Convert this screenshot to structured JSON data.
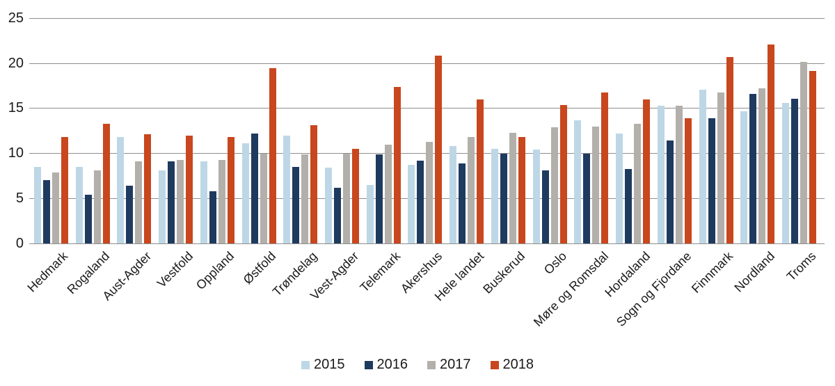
{
  "chart_data": {
    "type": "bar",
    "title": "",
    "xlabel": "",
    "ylabel": "",
    "ylim": [
      0,
      25
    ],
    "yticks": [
      0,
      5,
      10,
      15,
      20,
      25
    ],
    "grid": true,
    "legend_position": "bottom-center",
    "background_color": "#ffffff",
    "gridline_color": "#8e8e8e",
    "text_color": "#1a1a1a",
    "categories": [
      "Hedmark",
      "Rogaland",
      "Aust-Agder",
      "Vestfold",
      "Oppland",
      "Østfold",
      "Trøndelag",
      "Vest-Agder",
      "Telemark",
      "Akershus",
      "Hele landet",
      "Buskerud",
      "Oslo",
      "Møre og Romsdal",
      "Hordaland",
      "Sogn og Fjordane",
      "Finnmark",
      "Nordland",
      "Troms"
    ],
    "series": [
      {
        "name": "2015",
        "color": "#bed7e6",
        "values": [
          8.5,
          8.5,
          11.8,
          8.1,
          9.1,
          11.1,
          12.0,
          8.4,
          6.5,
          8.7,
          10.8,
          10.5,
          10.4,
          13.7,
          12.2,
          15.3,
          17.1,
          14.7,
          15.6
        ]
      },
      {
        "name": "2016",
        "color": "#1f3a5f",
        "values": [
          7.0,
          5.4,
          6.4,
          9.1,
          5.8,
          12.2,
          8.5,
          6.2,
          9.9,
          9.2,
          8.9,
          10.0,
          8.1,
          10.0,
          8.3,
          11.4,
          13.9,
          16.6,
          16.1
        ]
      },
      {
        "name": "2017",
        "color": "#b3afaa",
        "values": [
          7.9,
          8.1,
          9.1,
          9.3,
          9.3,
          10.0,
          9.9,
          10.0,
          11.0,
          11.3,
          11.8,
          12.3,
          12.9,
          13.0,
          13.3,
          15.3,
          16.8,
          17.2,
          20.2
        ]
      },
      {
        "name": "2018",
        "color": "#c8471e",
        "values": [
          11.8,
          13.3,
          12.1,
          12.0,
          11.8,
          19.5,
          13.1,
          10.5,
          17.4,
          20.9,
          16.0,
          11.8,
          15.4,
          16.8,
          16.0,
          13.9,
          20.7,
          22.1,
          19.2
        ]
      }
    ]
  }
}
